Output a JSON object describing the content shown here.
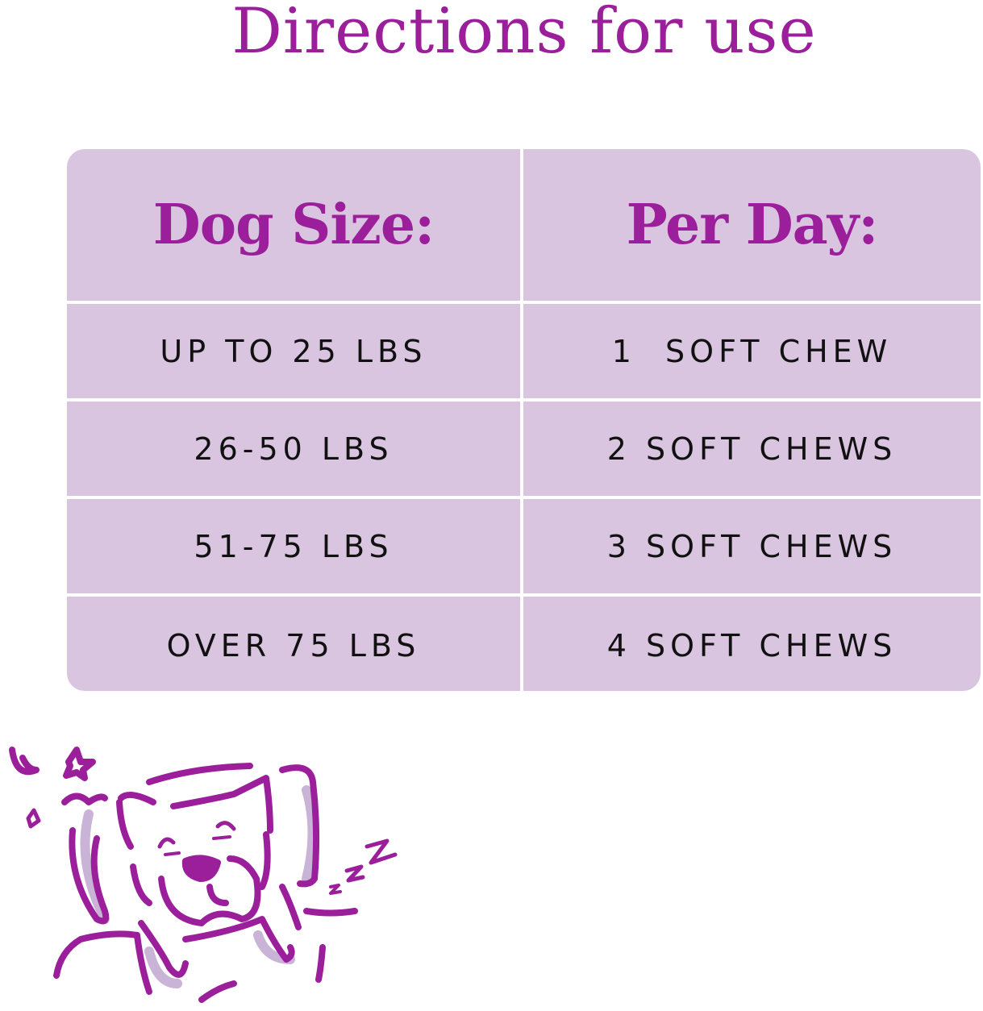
{
  "title": "Directions for use",
  "table": {
    "headers": [
      "Dog Size:",
      "Per Day:"
    ],
    "rows": [
      [
        "UP TO 25 LBS",
        "1  SOFT CHEW"
      ],
      [
        "26-50 LBS",
        "2 SOFT CHEWS"
      ],
      [
        "51-75 LBS",
        "3 SOFT CHEWS"
      ],
      [
        "OVER 75 LBS",
        "4 SOFT CHEWS"
      ]
    ]
  },
  "illustration": "sleeping-dog-icon",
  "colors": {
    "accent": "#9b1f9b",
    "table_bg": "#dac5e0",
    "shadow": "#c9b3d6"
  }
}
